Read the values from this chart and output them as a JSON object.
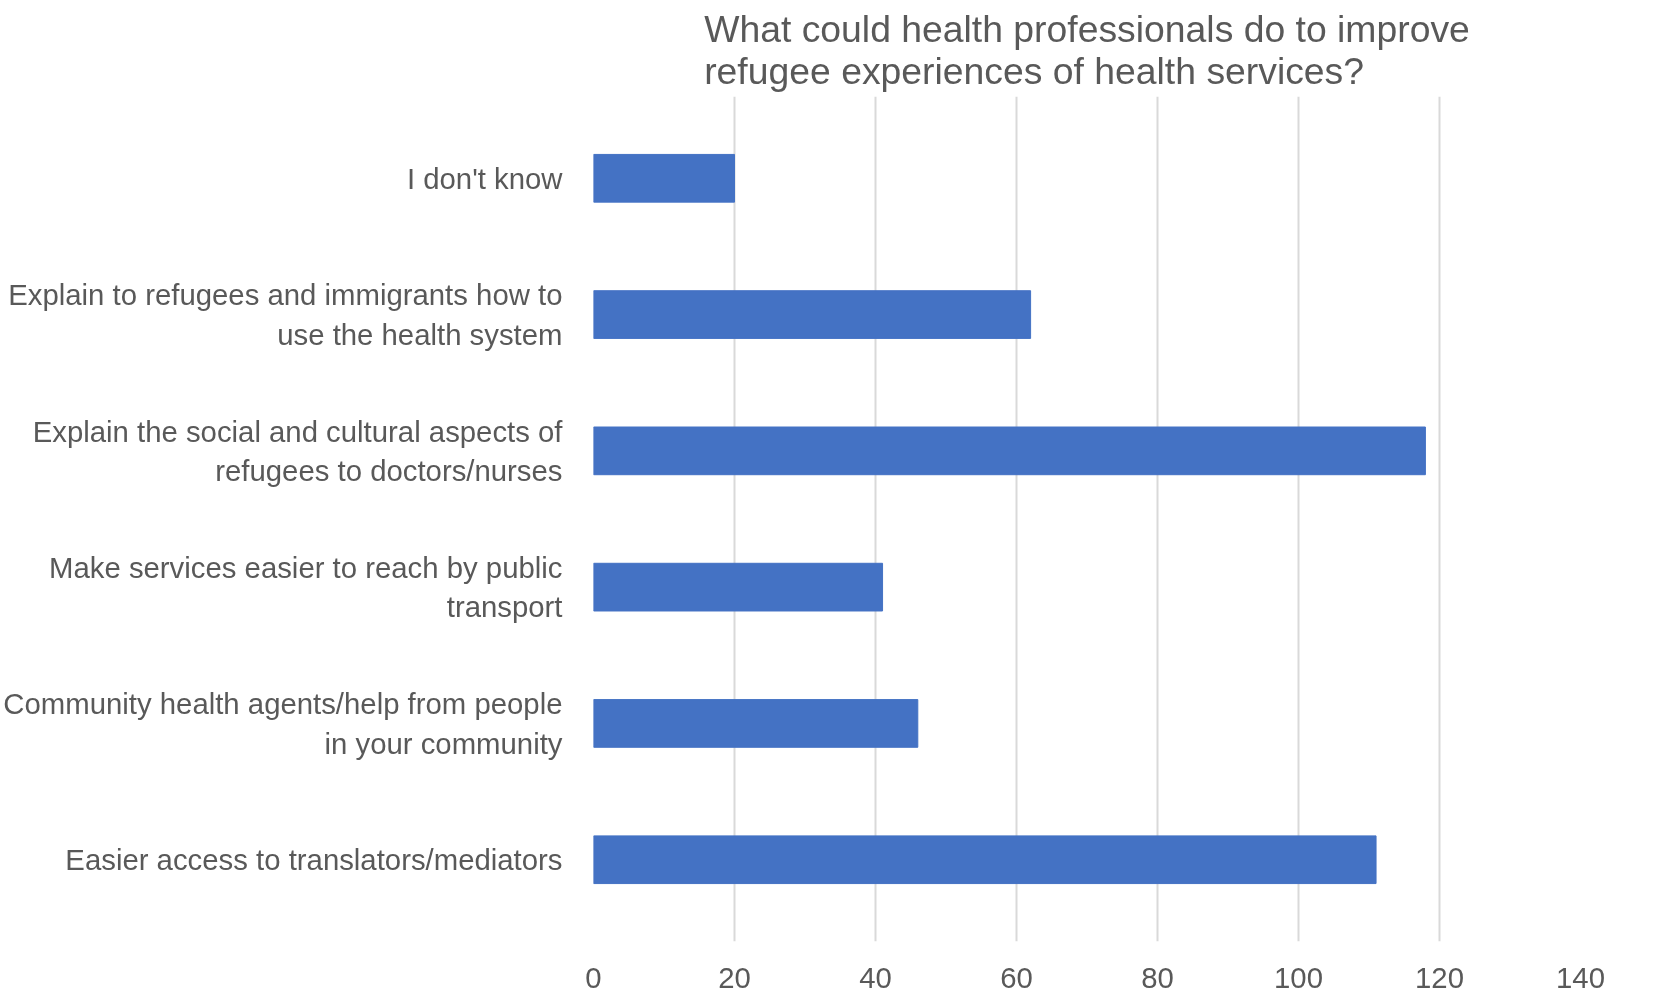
{
  "chart_data": {
    "type": "bar",
    "orientation": "horizontal",
    "title": "What could health professionals do to improve refugee experiences of health services?",
    "categories": [
      "I don't know",
      "Explain to refugees and immigrants how to use the health system",
      "Explain the social and cultural aspects of refugees to doctors/nurses",
      "Make services easier to reach by public transport",
      "Community health agents/help from people in your community",
      "Easier access to translators/mediators"
    ],
    "values": [
      20,
      62,
      118,
      41,
      46,
      111
    ],
    "color": "#4472c4",
    "xlim": [
      0,
      140
    ],
    "xticks": [
      0,
      20,
      40,
      60,
      80,
      100,
      120,
      140
    ],
    "grid": "x"
  }
}
